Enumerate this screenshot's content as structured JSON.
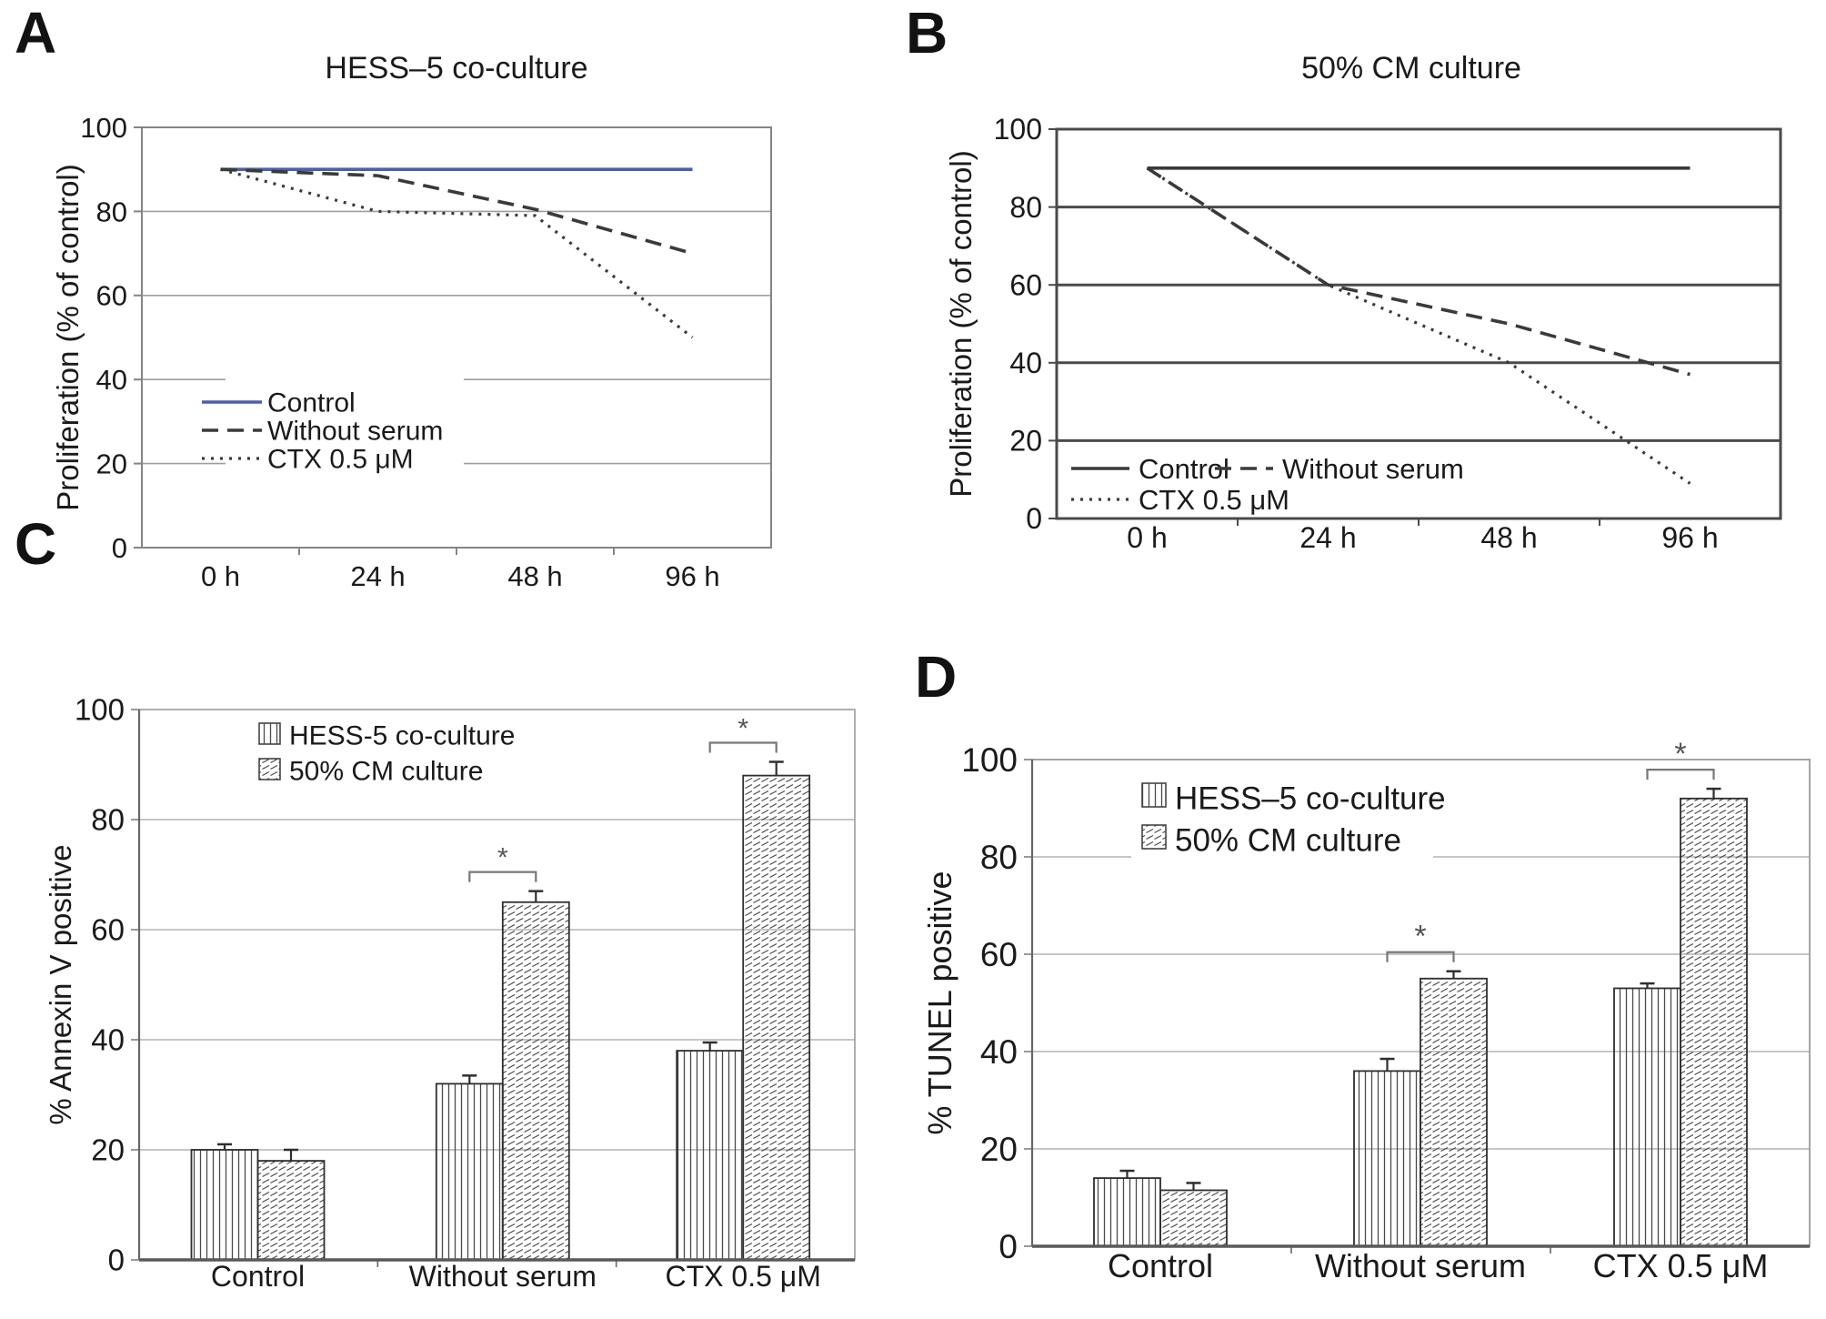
{
  "figure_background": "#ffffff",
  "accent_blue": "#4f5fa8",
  "ink_color": "#1a1a1a",
  "chart_data": [
    {
      "panel": "A",
      "type": "line",
      "title": "HESS–5 co-culture",
      "ylabel": "Proliferation (% of control)",
      "x_categories": [
        "0 h",
        "24 h",
        "48 h",
        "96 h"
      ],
      "ylim": [
        0,
        100
      ],
      "yticks": [
        0,
        20,
        40,
        60,
        80,
        100
      ],
      "grid": "light",
      "legend_position": "inside lower-left, one per row",
      "series": [
        {
          "name": "Control",
          "line_style": "solid",
          "color": "#4f5fa8",
          "values": [
            90,
            90,
            90,
            90
          ]
        },
        {
          "name": "Without serum",
          "line_style": "dashed",
          "color": "#3a3a3a",
          "values": [
            90,
            88.5,
            80.5,
            70
          ]
        },
        {
          "name": "CTX 0.5 μM",
          "line_style": "dotted",
          "color": "#3a3a3a",
          "values": [
            90,
            80,
            79,
            50
          ]
        }
      ]
    },
    {
      "panel": "B",
      "type": "line",
      "title": "50% CM culture",
      "ylabel": "Proliferation (% of control)",
      "x_categories": [
        "0 h",
        "24 h",
        "48 h",
        "96 h"
      ],
      "ylim": [
        0,
        100
      ],
      "yticks": [
        0,
        20,
        40,
        60,
        80,
        100
      ],
      "grid": "dark-heavy",
      "legend_position": "inside lower-left, two rows",
      "series": [
        {
          "name": "Control",
          "line_style": "solid",
          "color": "#3a3a3a",
          "values": [
            90,
            90,
            90,
            90
          ]
        },
        {
          "name": "Without serum",
          "line_style": "dashed",
          "color": "#3a3a3a",
          "values": [
            90,
            60,
            50,
            37
          ]
        },
        {
          "name": "CTX 0.5 μM",
          "line_style": "dotted",
          "color": "#3a3a3a",
          "values": [
            90,
            60,
            40,
            9
          ]
        }
      ]
    },
    {
      "panel": "C",
      "type": "bar",
      "title": "",
      "ylabel": "% Annexin V  positive",
      "categories": [
        "Control",
        "Without serum",
        "CTX 0.5 μM"
      ],
      "ylim": [
        0,
        100
      ],
      "yticks": [
        0,
        20,
        40,
        60,
        80,
        100
      ],
      "grid": "light",
      "legend_position": "inside upper-left",
      "series": [
        {
          "name": "HESS-5 co-culture",
          "pattern": "vertical-stripes",
          "values": [
            20,
            32,
            38
          ],
          "errors": [
            1,
            1.5,
            1.5
          ]
        },
        {
          "name": "50% CM culture",
          "pattern": "diagonal-hatch",
          "values": [
            18,
            65,
            88
          ],
          "errors": [
            2,
            2,
            2.5
          ]
        }
      ],
      "significance": [
        {
          "category": "Without serum",
          "marker": "*"
        },
        {
          "category": "CTX 0.5 μM",
          "marker": "*"
        }
      ]
    },
    {
      "panel": "D",
      "type": "bar",
      "title": "",
      "ylabel": "% TUNEL  positive",
      "categories": [
        "Control",
        "Without serum",
        "CTX 0.5 μM"
      ],
      "ylim": [
        0,
        100
      ],
      "yticks": [
        0,
        20,
        40,
        60,
        80,
        100
      ],
      "grid": "light",
      "legend_position": "inside upper-left",
      "series": [
        {
          "name": "HESS–5 co-culture",
          "pattern": "vertical-stripes",
          "values": [
            14,
            36,
            53
          ],
          "errors": [
            1.5,
            2.5,
            1
          ]
        },
        {
          "name": "50% CM culture",
          "pattern": "diagonal-hatch",
          "values": [
            11.5,
            55,
            92
          ],
          "errors": [
            1.5,
            1.5,
            2
          ]
        }
      ],
      "significance": [
        {
          "category": "Without serum",
          "marker": "*"
        },
        {
          "category": "CTX 0.5 μM",
          "marker": "*"
        }
      ]
    }
  ]
}
